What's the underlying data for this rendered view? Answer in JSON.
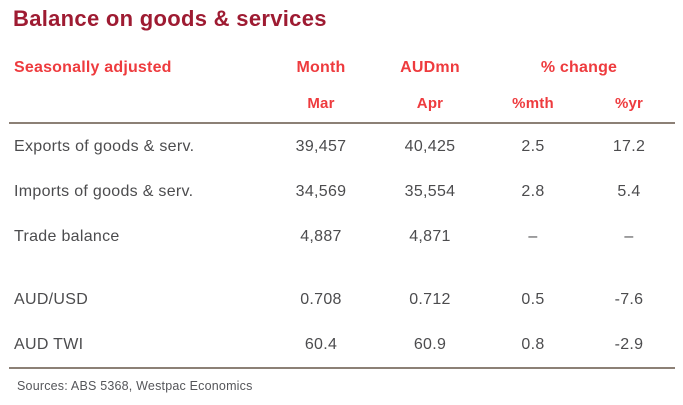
{
  "title": "Balance on goods & services",
  "header": {
    "group": {
      "label": "Seasonally adjusted",
      "month": "Month",
      "audmn": "AUDmn",
      "pct_change": "% change"
    },
    "sub": {
      "mar": "Mar",
      "apr": "Apr",
      "mth": "%mth",
      "yr": "%yr"
    }
  },
  "rows": [
    {
      "label": "Exports of goods & serv.",
      "mar": "39,457",
      "apr": "40,425",
      "mth": "2.5",
      "yr": "17.2"
    },
    {
      "label": "Imports of goods & serv.",
      "mar": "34,569",
      "apr": "35,554",
      "mth": "2.8",
      "yr": "5.4"
    },
    {
      "label": "Trade balance",
      "mar": "4,887",
      "apr": "4,871",
      "mth": "–",
      "yr": "–"
    },
    {
      "label": "AUD/USD",
      "mar": "0.708",
      "apr": "0.712",
      "mth": "0.5",
      "yr": "-7.6"
    },
    {
      "label": "AUD TWI",
      "mar": "60.4",
      "apr": "60.9",
      "mth": "0.8",
      "yr": "-2.9"
    }
  ],
  "footer": {
    "sources": "Sources: ABS 5368, Westpac Economics"
  },
  "colors": {
    "title_maroon": "#9E1B32",
    "header_red": "#EE3B3E",
    "body_text": "#4C4C4E",
    "rule_taupe": "#8C8076",
    "source_gray": "#55565A",
    "background": "#FFFFFF"
  },
  "chart_data": {
    "type": "table",
    "title": "Balance on goods & services",
    "column_groups": [
      "Seasonally adjusted",
      "Month",
      "AUDmn",
      "% change"
    ],
    "columns": [
      "Seasonally adjusted",
      "Mar",
      "Apr",
      "%mth",
      "%yr"
    ],
    "rows": [
      [
        "Exports of goods & serv.",
        39457,
        40425,
        2.5,
        17.2
      ],
      [
        "Imports of goods & serv.",
        34569,
        35554,
        2.8,
        5.4
      ],
      [
        "Trade balance",
        4887,
        4871,
        null,
        null
      ],
      [
        "AUD/USD",
        0.708,
        0.712,
        0.5,
        -7.6
      ],
      [
        "AUD TWI",
        60.4,
        60.9,
        0.8,
        -2.9
      ]
    ],
    "source": "Sources: ABS 5368, Westpac Economics",
    "layout_hints": {
      "units_row_1_2": "AUD millions for trade rows",
      "group_header_span": "% change spans %mth and %yr columns",
      "alignment": "label column left, value columns centered"
    }
  }
}
